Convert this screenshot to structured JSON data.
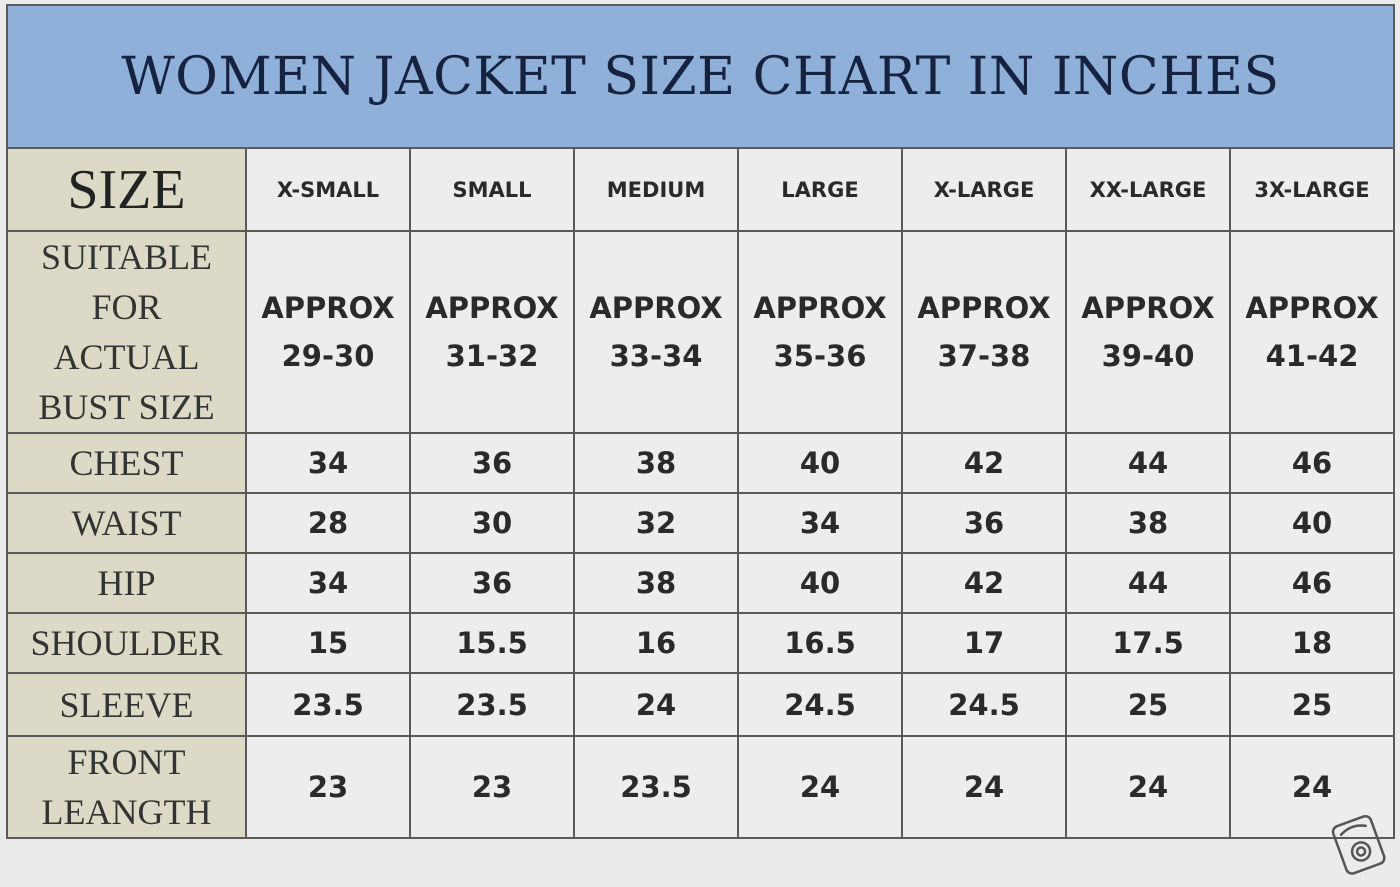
{
  "title": "WOMEN JACKET SIZE CHART IN INCHES",
  "colors": {
    "title_bg": "#8fb0d9",
    "label_bg": "#dcd9c6",
    "cell_bg": "#ededed",
    "title_text": "#16223f"
  },
  "chart_data": {
    "type": "table",
    "header_label": "SIZE",
    "columns": [
      "X-SMALL",
      "SMALL",
      "MEDIUM",
      "LARGE",
      "X-LARGE",
      "XX-LARGE",
      "3X-LARGE"
    ],
    "bust_row": {
      "label_lines": [
        "SUITABLE",
        "FOR",
        "ACTUAL",
        "BUST SIZE"
      ],
      "prefix": "APPROX",
      "values": [
        "29-30",
        "31-32",
        "33-34",
        "35-36",
        "37-38",
        "39-40",
        "41-42"
      ]
    },
    "rows": [
      {
        "label": "CHEST",
        "values": [
          "34",
          "36",
          "38",
          "40",
          "42",
          "44",
          "46"
        ]
      },
      {
        "label": "WAIST",
        "values": [
          "28",
          "30",
          "32",
          "34",
          "36",
          "38",
          "40"
        ]
      },
      {
        "label": "HIP",
        "values": [
          "34",
          "36",
          "38",
          "40",
          "42",
          "44",
          "46"
        ]
      },
      {
        "label": "SHOULDER",
        "values": [
          "15",
          "15.5",
          "16",
          "16.5",
          "17",
          "17.5",
          "18"
        ]
      },
      {
        "label": "SLEEVE",
        "values": [
          "23.5",
          "23.5",
          "24",
          "24.5",
          "24.5",
          "25",
          "25"
        ]
      }
    ],
    "last_row": {
      "label_lines": [
        "FRONT",
        "LEANGTH"
      ],
      "values": [
        "23",
        "23",
        "23.5",
        "24",
        "24",
        "24",
        "24"
      ]
    }
  },
  "watermark_icon": "camera-stamp-icon"
}
